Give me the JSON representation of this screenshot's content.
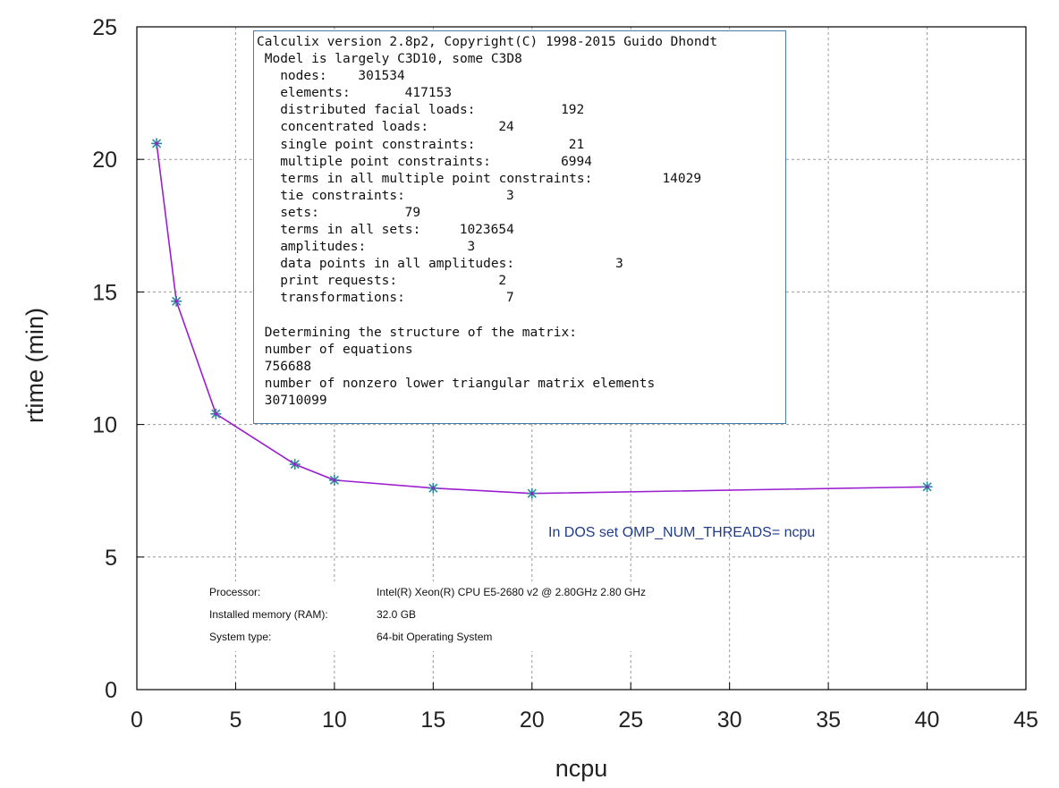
{
  "chart_data": {
    "type": "line",
    "xlabel": "ncpu",
    "ylabel": "rtime (min)",
    "xlim": [
      0,
      45
    ],
    "ylim": [
      0,
      25
    ],
    "xticks": [
      0,
      5,
      10,
      15,
      20,
      25,
      30,
      35,
      40,
      45
    ],
    "yticks": [
      0,
      5,
      10,
      15,
      20,
      25
    ],
    "grid": true,
    "series": [
      {
        "x": [
          1,
          2,
          4,
          8,
          10,
          15,
          20,
          40
        ],
        "y": [
          20.6,
          14.65,
          10.4,
          8.5,
          7.9,
          7.6,
          7.4,
          7.65
        ],
        "color": "#9b1fd0",
        "marker_color": "#2a8a9a"
      }
    ]
  },
  "info_box": {
    "lines": [
      {
        "text": "Calculix version 2.8p2, Copyright(C) 1998-2015 Guido Dhondt"
      },
      {
        "text": " Model is largely C3D10, some C3D8"
      },
      {
        "text": "   nodes:",
        "value": "301534",
        "value_col": 13
      },
      {
        "text": "   elements:",
        "value": "417153",
        "value_col": 19
      },
      {
        "text": "   distributed facial loads:",
        "value": "192",
        "value_col": 39
      },
      {
        "text": "   concentrated loads:",
        "value": "24",
        "value_col": 31
      },
      {
        "text": "   single point constraints:",
        "value": "21",
        "value_col": 40
      },
      {
        "text": "   multiple point constraints:",
        "value": "6994",
        "value_col": 39
      },
      {
        "text": "   terms in all multiple point constraints:",
        "value": "14029",
        "value_col": 52
      },
      {
        "text": "   tie constraints:",
        "value": "3",
        "value_col": 32
      },
      {
        "text": "   sets:",
        "value": "79",
        "value_col": 19
      },
      {
        "text": "   terms in all sets:",
        "value": "1023654",
        "value_col": 26
      },
      {
        "text": "   amplitudes:",
        "value": "3",
        "value_col": 27
      },
      {
        "text": "   data points in all amplitudes:",
        "value": "3",
        "value_col": 46
      },
      {
        "text": "   print requests:",
        "value": "2",
        "value_col": 31
      },
      {
        "text": "   transformations:",
        "value": "7",
        "value_col": 32
      },
      {
        "text": ""
      },
      {
        "text": " Determining the structure of the matrix:"
      },
      {
        "text": " number of equations"
      },
      {
        "text": " 756688"
      },
      {
        "text": " number of nonzero lower triangular matrix elements"
      },
      {
        "text": " 30710099"
      }
    ]
  },
  "note": "In DOS set OMP_NUM_THREADS= ncpu",
  "system_info": {
    "rows": [
      {
        "key": "Processor:",
        "value": "Intel(R) Xeon(R) CPU E5-2680 v2 @ 2.80GHz   2.80 GHz"
      },
      {
        "key": "Installed memory (RAM):",
        "value": "32.0 GB"
      },
      {
        "key": "System type:",
        "value": "64-bit Operating System"
      }
    ]
  }
}
